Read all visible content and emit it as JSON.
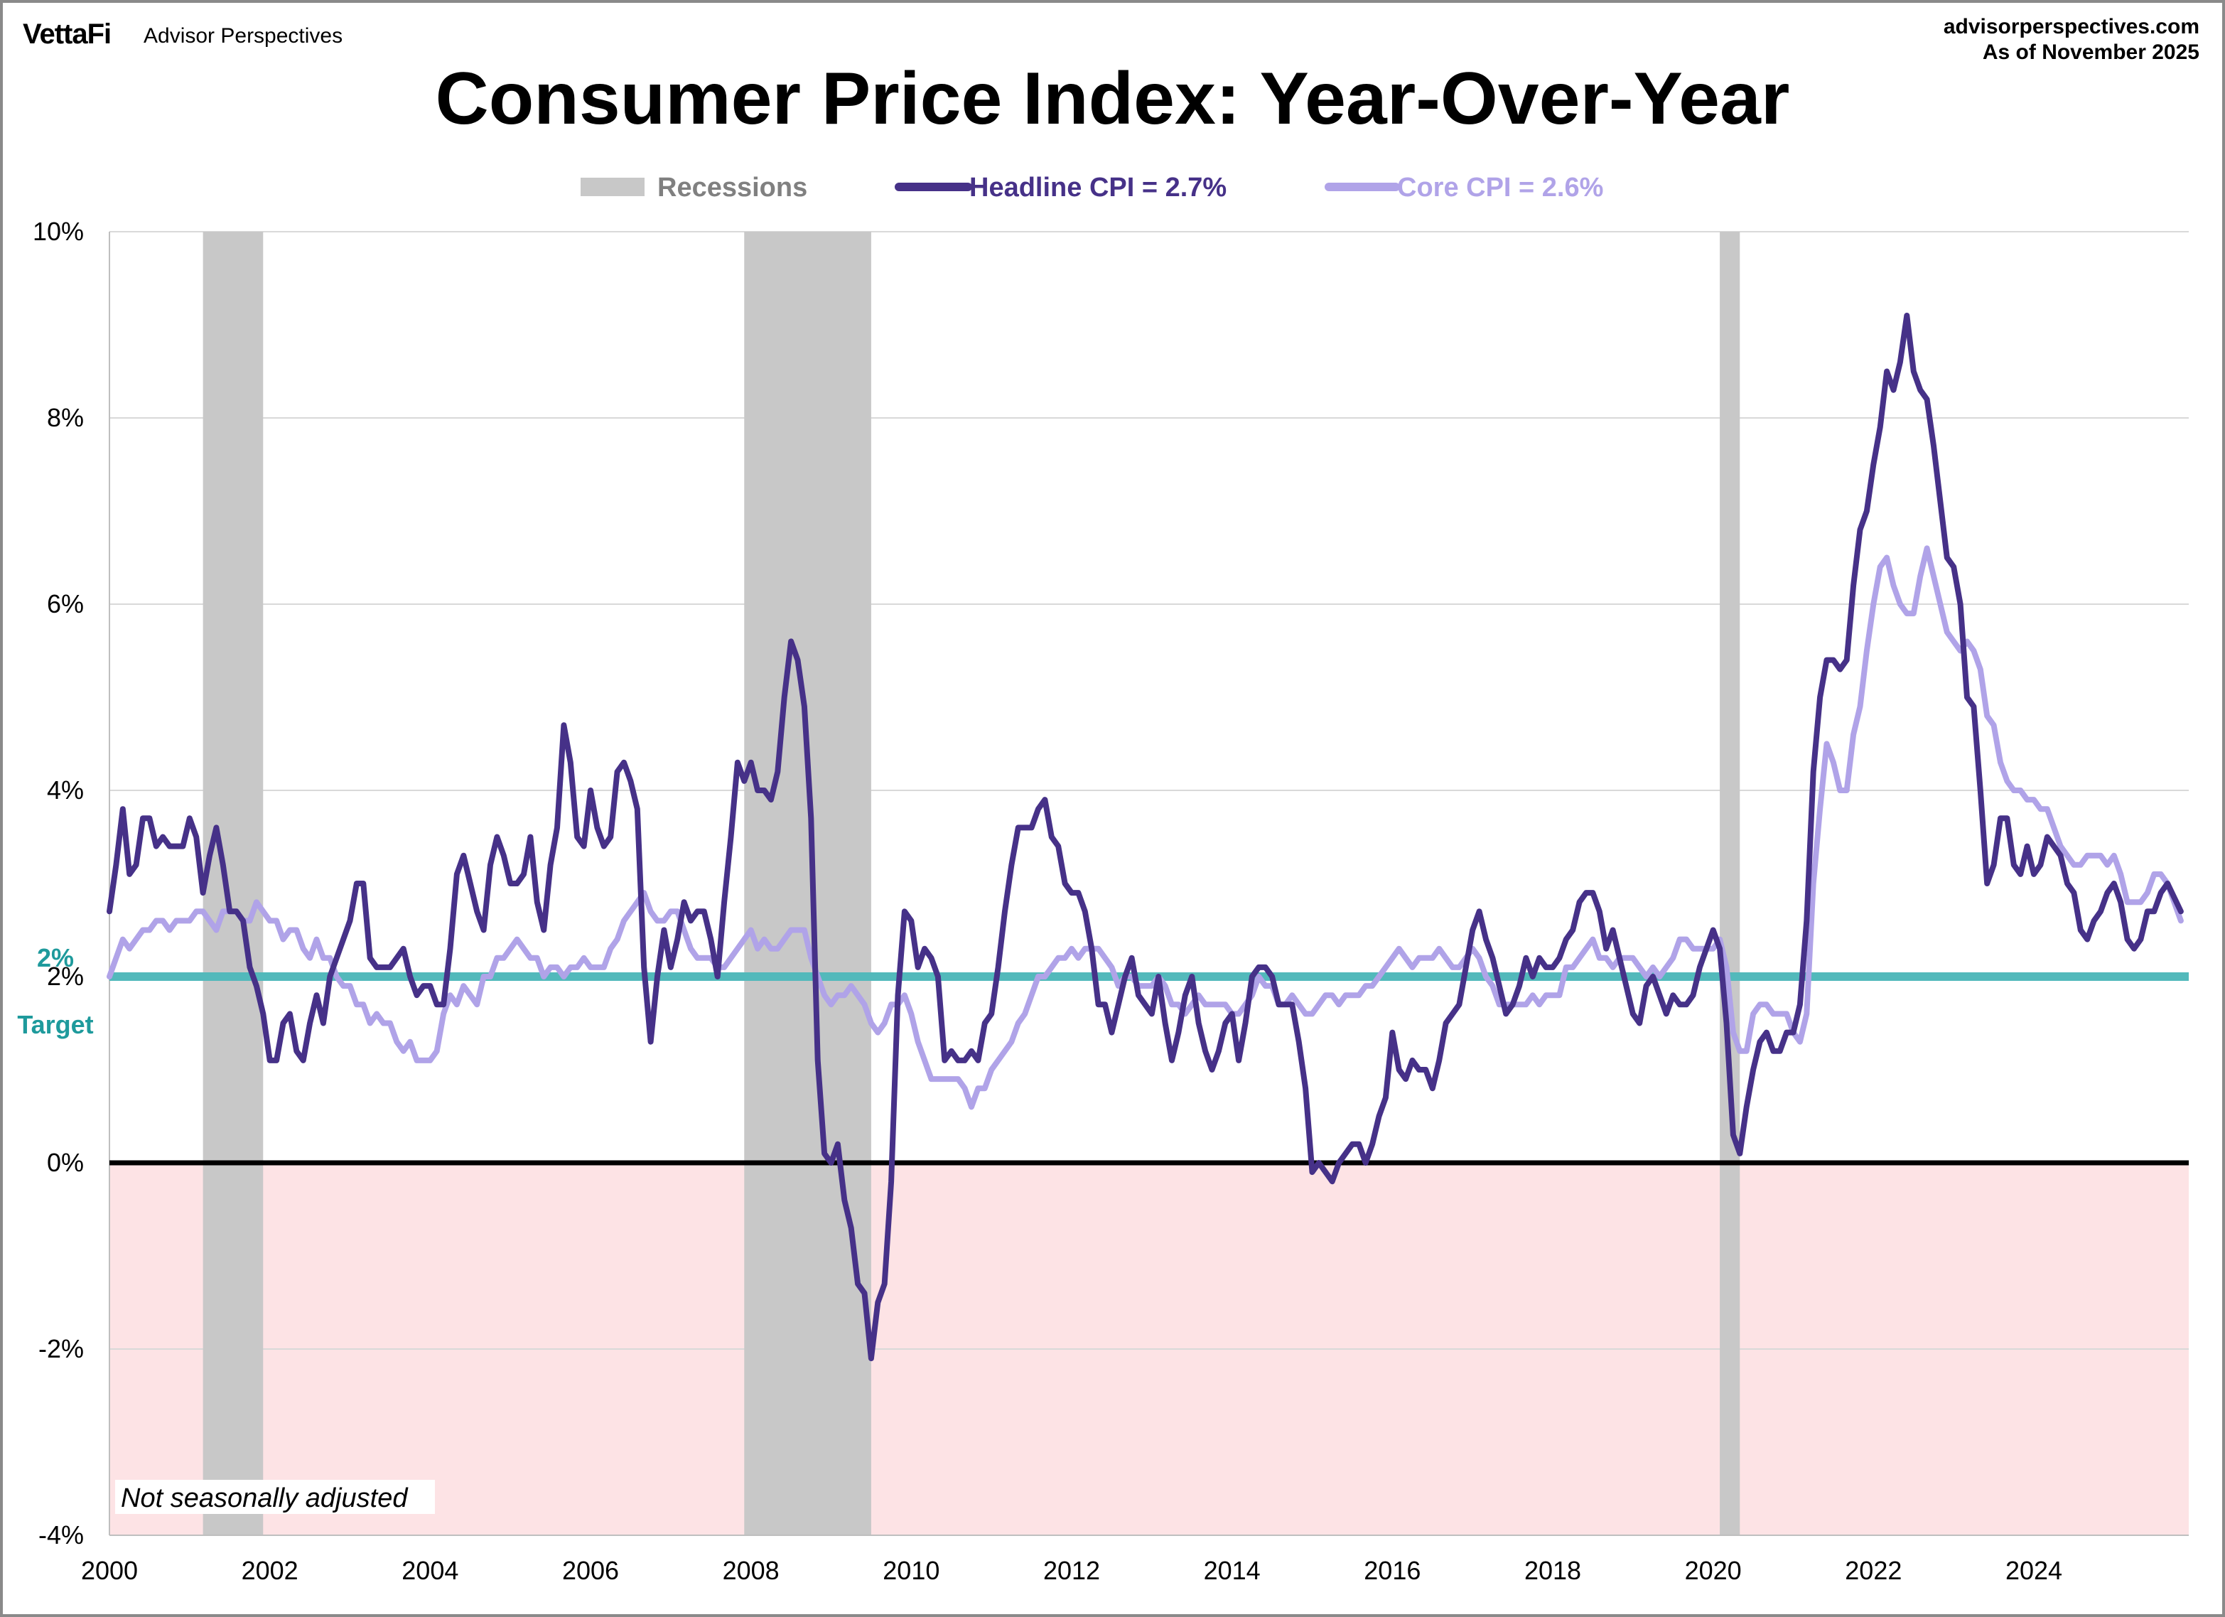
{
  "header": {
    "logo": "VettaFi",
    "brand": "Advisor Perspectives",
    "site": "advisorperspectives.com",
    "as_of": "As of November 2025"
  },
  "colors": {
    "headline": "#463188",
    "core": "#b0a3e8",
    "target": "#52b9bb",
    "recession": "#c8c8c8",
    "deflation_zone": "#fde3e5",
    "zero_line": "#000000"
  },
  "chart_data": {
    "type": "line",
    "title": "Consumer Price Index: Year-Over-Year",
    "x_start": "2000-01",
    "frequency": "monthly",
    "xlim": [
      2000,
      2026
    ],
    "ylim": [
      -4,
      10
    ],
    "x_ticks": [
      "2000",
      "2002",
      "2004",
      "2006",
      "2008",
      "2010",
      "2012",
      "2014",
      "2016",
      "2018",
      "2020",
      "2022",
      "2024"
    ],
    "y_ticks": [
      "10%",
      "8%",
      "6%",
      "4%",
      "2%",
      "0%",
      "-2%",
      "-4%"
    ],
    "y_tick_values": [
      10,
      8,
      6,
      4,
      2,
      0,
      -2,
      -4
    ],
    "grid": "horizontal",
    "legend_placement": "top-center",
    "legend": {
      "recessions": "Recessions",
      "headline": "Headline CPI = 2.7%",
      "core": "Core CPI =  2.6%"
    },
    "target": {
      "value": 2,
      "label_value": "2%",
      "label_text": "Target"
    },
    "note": "Not seasonally adjusted",
    "recessions": [
      [
        "2001-03",
        "2001-11"
      ],
      [
        "2007-12",
        "2009-06"
      ],
      [
        "2020-02",
        "2020-04"
      ]
    ],
    "series": [
      {
        "name": "Headline CPI",
        "values": [
          2.7,
          3.2,
          3.8,
          3.1,
          3.2,
          3.7,
          3.7,
          3.4,
          3.5,
          3.4,
          3.4,
          3.4,
          3.7,
          3.5,
          2.9,
          3.3,
          3.6,
          3.2,
          2.7,
          2.7,
          2.6,
          2.1,
          1.9,
          1.6,
          1.1,
          1.1,
          1.5,
          1.6,
          1.2,
          1.1,
          1.5,
          1.8,
          1.5,
          2.0,
          2.2,
          2.4,
          2.6,
          3.0,
          3.0,
          2.2,
          2.1,
          2.1,
          2.1,
          2.2,
          2.3,
          2.0,
          1.8,
          1.9,
          1.9,
          1.7,
          1.7,
          2.3,
          3.1,
          3.3,
          3.0,
          2.7,
          2.5,
          3.2,
          3.5,
          3.3,
          3.0,
          3.0,
          3.1,
          3.5,
          2.8,
          2.5,
          3.2,
          3.6,
          4.7,
          4.3,
          3.5,
          3.4,
          4.0,
          3.6,
          3.4,
          3.5,
          4.2,
          4.3,
          4.1,
          3.8,
          2.1,
          1.3,
          2.0,
          2.5,
          2.1,
          2.4,
          2.8,
          2.6,
          2.7,
          2.7,
          2.4,
          2.0,
          2.8,
          3.5,
          4.3,
          4.1,
          4.3,
          4.0,
          4.0,
          3.9,
          4.2,
          5.0,
          5.6,
          5.4,
          4.9,
          3.7,
          1.1,
          0.1,
          0.0,
          0.2,
          -0.4,
          -0.7,
          -1.3,
          -1.4,
          -2.1,
          -1.5,
          -1.3,
          -0.2,
          1.8,
          2.7,
          2.6,
          2.1,
          2.3,
          2.2,
          2.0,
          1.1,
          1.2,
          1.1,
          1.1,
          1.2,
          1.1,
          1.5,
          1.6,
          2.1,
          2.7,
          3.2,
          3.6,
          3.6,
          3.6,
          3.8,
          3.9,
          3.5,
          3.4,
          3.0,
          2.9,
          2.9,
          2.7,
          2.3,
          1.7,
          1.7,
          1.4,
          1.7,
          2.0,
          2.2,
          1.8,
          1.7,
          1.6,
          2.0,
          1.5,
          1.1,
          1.4,
          1.8,
          2.0,
          1.5,
          1.2,
          1.0,
          1.2,
          1.5,
          1.6,
          1.1,
          1.5,
          2.0,
          2.1,
          2.1,
          2.0,
          1.7,
          1.7,
          1.7,
          1.3,
          0.8,
          -0.1,
          0.0,
          -0.1,
          -0.2,
          0.0,
          0.1,
          0.2,
          0.2,
          0.0,
          0.2,
          0.5,
          0.7,
          1.4,
          1.0,
          0.9,
          1.1,
          1.0,
          1.0,
          0.8,
          1.1,
          1.5,
          1.6,
          1.7,
          2.1,
          2.5,
          2.7,
          2.4,
          2.2,
          1.9,
          1.6,
          1.7,
          1.9,
          2.2,
          2.0,
          2.2,
          2.1,
          2.1,
          2.2,
          2.4,
          2.5,
          2.8,
          2.9,
          2.9,
          2.7,
          2.3,
          2.5,
          2.2,
          1.9,
          1.6,
          1.5,
          1.9,
          2.0,
          1.8,
          1.6,
          1.8,
          1.7,
          1.7,
          1.8,
          2.1,
          2.3,
          2.5,
          2.3,
          1.5,
          0.3,
          0.1,
          0.6,
          1.0,
          1.3,
          1.4,
          1.2,
          1.2,
          1.4,
          1.4,
          1.7,
          2.6,
          4.2,
          5.0,
          5.4,
          5.4,
          5.3,
          5.4,
          6.2,
          6.8,
          7.0,
          7.5,
          7.9,
          8.5,
          8.3,
          8.6,
          9.1,
          8.5,
          8.3,
          8.2,
          7.7,
          7.1,
          6.5,
          6.4,
          6.0,
          5.0,
          4.9,
          4.0,
          3.0,
          3.2,
          3.7,
          3.7,
          3.2,
          3.1,
          3.4,
          3.1,
          3.2,
          3.5,
          3.4,
          3.3,
          3.0,
          2.9,
          2.5,
          2.4,
          2.6,
          2.7,
          2.9,
          3.0,
          2.8,
          2.4,
          2.3,
          2.4,
          2.7,
          2.7,
          2.9,
          3.0,
          null,
          2.7
        ]
      },
      {
        "name": "Core CPI",
        "values": [
          2.0,
          2.2,
          2.4,
          2.3,
          2.4,
          2.5,
          2.5,
          2.6,
          2.6,
          2.5,
          2.6,
          2.6,
          2.6,
          2.7,
          2.7,
          2.6,
          2.5,
          2.7,
          2.7,
          2.7,
          2.6,
          2.6,
          2.8,
          2.7,
          2.6,
          2.6,
          2.4,
          2.5,
          2.5,
          2.3,
          2.2,
          2.4,
          2.2,
          2.2,
          2.0,
          1.9,
          1.9,
          1.7,
          1.7,
          1.5,
          1.6,
          1.5,
          1.5,
          1.3,
          1.2,
          1.3,
          1.1,
          1.1,
          1.1,
          1.2,
          1.6,
          1.8,
          1.7,
          1.9,
          1.8,
          1.7,
          2.0,
          2.0,
          2.2,
          2.2,
          2.3,
          2.4,
          2.3,
          2.2,
          2.2,
          2.0,
          2.1,
          2.1,
          2.0,
          2.1,
          2.1,
          2.2,
          2.1,
          2.1,
          2.1,
          2.3,
          2.4,
          2.6,
          2.7,
          2.8,
          2.9,
          2.7,
          2.6,
          2.6,
          2.7,
          2.7,
          2.5,
          2.3,
          2.2,
          2.2,
          2.2,
          2.1,
          2.1,
          2.2,
          2.3,
          2.4,
          2.5,
          2.3,
          2.4,
          2.3,
          2.3,
          2.4,
          2.5,
          2.5,
          2.5,
          2.2,
          2.0,
          1.8,
          1.7,
          1.8,
          1.8,
          1.9,
          1.8,
          1.7,
          1.5,
          1.4,
          1.5,
          1.7,
          1.7,
          1.8,
          1.6,
          1.3,
          1.1,
          0.9,
          0.9,
          0.9,
          0.9,
          0.9,
          0.8,
          0.6,
          0.8,
          0.8,
          1.0,
          1.1,
          1.2,
          1.3,
          1.5,
          1.6,
          1.8,
          2.0,
          2.0,
          2.1,
          2.2,
          2.2,
          2.3,
          2.2,
          2.3,
          2.3,
          2.3,
          2.2,
          2.1,
          1.9,
          2.0,
          2.0,
          1.9,
          1.9,
          1.9,
          2.0,
          1.9,
          1.7,
          1.7,
          1.6,
          1.7,
          1.8,
          1.7,
          1.7,
          1.7,
          1.7,
          1.6,
          1.6,
          1.7,
          1.8,
          2.0,
          1.9,
          1.9,
          1.7,
          1.7,
          1.8,
          1.7,
          1.6,
          1.6,
          1.7,
          1.8,
          1.8,
          1.7,
          1.8,
          1.8,
          1.8,
          1.9,
          1.9,
          2.0,
          2.1,
          2.2,
          2.3,
          2.2,
          2.1,
          2.2,
          2.2,
          2.2,
          2.3,
          2.2,
          2.1,
          2.1,
          2.2,
          2.3,
          2.2,
          2.0,
          1.9,
          1.7,
          1.7,
          1.7,
          1.7,
          1.7,
          1.8,
          1.7,
          1.8,
          1.8,
          1.8,
          2.1,
          2.1,
          2.2,
          2.3,
          2.4,
          2.2,
          2.2,
          2.1,
          2.2,
          2.2,
          2.2,
          2.1,
          2.0,
          2.1,
          2.0,
          2.1,
          2.2,
          2.4,
          2.4,
          2.3,
          2.3,
          2.3,
          2.3,
          2.4,
          2.1,
          1.4,
          1.2,
          1.2,
          1.6,
          1.7,
          1.7,
          1.6,
          1.6,
          1.6,
          1.4,
          1.3,
          1.6,
          3.0,
          3.8,
          4.5,
          4.3,
          4.0,
          4.0,
          4.6,
          4.9,
          5.5,
          6.0,
          6.4,
          6.5,
          6.2,
          6.0,
          5.9,
          5.9,
          6.3,
          6.6,
          6.3,
          6.0,
          5.7,
          5.6,
          5.5,
          5.6,
          5.5,
          5.3,
          4.8,
          4.7,
          4.3,
          4.1,
          4.0,
          4.0,
          3.9,
          3.9,
          3.8,
          3.8,
          3.6,
          3.4,
          3.3,
          3.2,
          3.2,
          3.3,
          3.3,
          3.3,
          3.2,
          3.3,
          3.1,
          2.8,
          2.8,
          2.8,
          2.9,
          3.1,
          3.1,
          3.0,
          null,
          2.6
        ]
      }
    ]
  }
}
